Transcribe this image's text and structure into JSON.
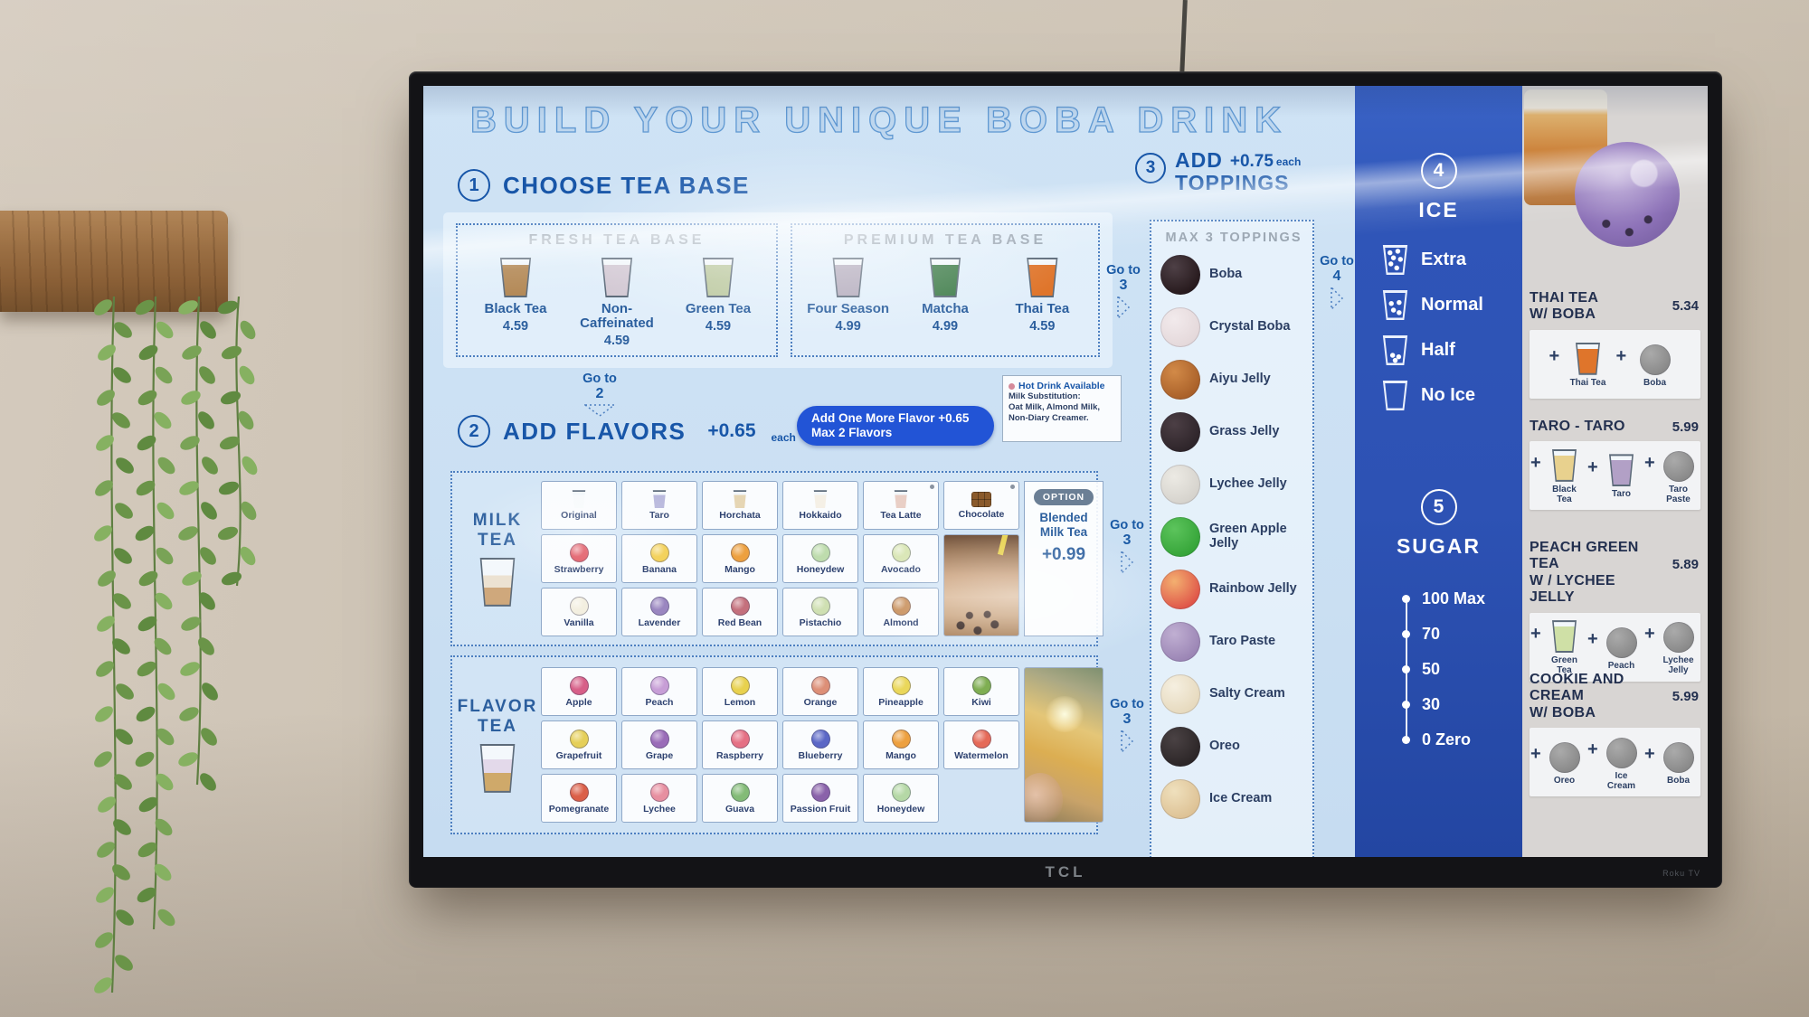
{
  "tv": {
    "brand": "TCL",
    "platform": "Roku TV"
  },
  "menu": {
    "title": "BUILD YOUR UNIQUE BOBA DRINK",
    "step1": {
      "num": "1",
      "title": "CHOOSE TEA BASE",
      "fresh": {
        "heading": "FRESH TEA BASE",
        "items": [
          {
            "label": "Black Tea",
            "price": "4.59",
            "color": "#b48a58"
          },
          {
            "label": "Non-Caffeinated",
            "price": "4.59",
            "color": "#d3c9d4"
          },
          {
            "label": "Green Tea",
            "price": "4.59",
            "color": "#bcc9a0"
          }
        ]
      },
      "premium": {
        "heading": "PREMIUM TEA BASE",
        "items": [
          {
            "label": "Four Season",
            "price": "4.99",
            "color": "#b3abbc"
          },
          {
            "label": "Matcha",
            "price": "4.99",
            "color": "#3e7c49"
          },
          {
            "label": "Thai Tea",
            "price": "4.59",
            "color": "#df752b"
          }
        ]
      },
      "goto": {
        "t": "Go to",
        "n": "2"
      },
      "goto_toppings": {
        "t": "Go to",
        "n": "3"
      }
    },
    "step2": {
      "num": "2",
      "title": "ADD FLAVORS",
      "price": "+0.65",
      "per": "each",
      "promo1": "Add One More Flavor +0.65",
      "promo2": "Max 2 Flavors",
      "note_title": "Hot Drink Available",
      "note1": "Milk Substitution:",
      "note2": "Oat Milk, Almond Milk,",
      "note3": "Non-Diary Creamer.",
      "milk": {
        "t1": "MILK",
        "t2": "TEA",
        "items": [
          {
            "label": "Original",
            "icon": "cup",
            "color": "#f7fafc"
          },
          {
            "label": "Taro",
            "icon": "cup",
            "color": "#b9b9dd"
          },
          {
            "label": "Horchata",
            "icon": "cup",
            "color": "#e6d6b4"
          },
          {
            "label": "Hokkaido",
            "icon": "cup",
            "color": "#f5f0e6"
          },
          {
            "label": "Tea Latte",
            "icon": "cup",
            "color": "#e9cfc6",
            "mark": "dot"
          },
          {
            "label": "Chocolate",
            "icon": "choco",
            "color": "#8a5a2b",
            "mark": "dot"
          },
          {
            "label": "Strawberry",
            "icon": "circle",
            "color": "#e0525e"
          },
          {
            "label": "Banana",
            "icon": "circle",
            "color": "#f3d055"
          },
          {
            "label": "Mango",
            "icon": "circle",
            "color": "#eda03f"
          },
          {
            "label": "Honeydew",
            "icon": "circle",
            "color": "#bedcad"
          },
          {
            "label": "Avocado",
            "icon": "circle",
            "color": "#d9e6b5"
          },
          {
            "label": "Vanilla",
            "icon": "circle",
            "color": "#f3efe0"
          },
          {
            "label": "Lavender",
            "icon": "circle",
            "color": "#9a86c0"
          },
          {
            "label": "Red Bean",
            "icon": "circle",
            "color": "#c4707c"
          },
          {
            "label": "Pistachio",
            "icon": "circle",
            "color": "#cfe0b2"
          },
          {
            "label": "Almond",
            "icon": "circle",
            "color": "#c8905c"
          }
        ],
        "opt_badge": "OPTION",
        "opt_name": "Blended Milk Tea",
        "opt_price": "+0.99",
        "goto": {
          "t": "Go to",
          "n": "3"
        }
      },
      "fruit": {
        "t1": "FLAVOR",
        "t2": "TEA",
        "items": [
          {
            "label": "Apple",
            "icon": "circle",
            "color": "#d75f88"
          },
          {
            "label": "Peach",
            "icon": "circle",
            "color": "#c79ed6"
          },
          {
            "label": "Lemon",
            "icon": "circle",
            "color": "#e8d14e"
          },
          {
            "label": "Orange",
            "icon": "circle",
            "color": "#dd8f77"
          },
          {
            "label": "Pineapple",
            "icon": "circle",
            "color": "#ead75a"
          },
          {
            "label": "Kiwi",
            "icon": "circle",
            "color": "#7fae52"
          },
          {
            "label": "Grapefruit",
            "icon": "circle",
            "color": "#e5cf58"
          },
          {
            "label": "Grape",
            "icon": "circle",
            "color": "#9a6cb8"
          },
          {
            "label": "Raspberry",
            "icon": "circle",
            "color": "#e57084"
          },
          {
            "label": "Blueberry",
            "icon": "circle",
            "color": "#5b67c6"
          },
          {
            "label": "Mango",
            "icon": "circle",
            "color": "#eda03f"
          },
          {
            "label": "Watermelon",
            "icon": "circle",
            "color": "#e56a58"
          },
          {
            "label": "Pomegranate",
            "icon": "circle",
            "color": "#db5f48"
          },
          {
            "label": "Lychee",
            "icon": "circle",
            "color": "#e78fa0"
          },
          {
            "label": "Guava",
            "icon": "circle",
            "color": "#83bb77"
          },
          {
            "label": "Passion Fruit",
            "icon": "circle",
            "color": "#8a62aa"
          },
          {
            "label": "Honeydew",
            "icon": "circle",
            "color": "#b5d8a6"
          }
        ],
        "goto": {
          "t": "Go to",
          "n": "3"
        }
      }
    },
    "step3": {
      "num": "3",
      "t1": "ADD",
      "t2": "TOPPINGS",
      "price": "+0.75",
      "per": "each",
      "max": "MAX 3 TOPPINGS",
      "goto": {
        "t": "Go to",
        "n": "4"
      },
      "items": [
        {
          "label": "Boba",
          "color": "#26191c",
          "color2": "#4e4046"
        },
        {
          "label": "Crystal Boba",
          "color": "#e4d8da",
          "color2": "#f2eaec"
        },
        {
          "label": "Aiyu Jelly",
          "color": "#a85f28",
          "color2": "#d28a48"
        },
        {
          "label": "Grass Jelly",
          "color": "#2d2429",
          "color2": "#4c3f45"
        },
        {
          "label": "Lychee Jelly",
          "color": "#d5d2cc",
          "color2": "#eceae4"
        },
        {
          "label": "Green Apple Jelly",
          "color": "#35a438",
          "color2": "#5cc45c"
        },
        {
          "label": "Rainbow Jelly",
          "color": "#df5448",
          "color2": "#f3b070"
        },
        {
          "label": "Taro Paste",
          "color": "#9a84b4",
          "color2": "#c0afd2"
        },
        {
          "label": "Salty Cream",
          "color": "#e6d9bd",
          "color2": "#f5efe0"
        },
        {
          "label": "Oreo",
          "color": "#2b2526",
          "color2": "#4a4244"
        },
        {
          "label": "Ice Cream",
          "color": "#ddc194",
          "color2": "#efe0bd"
        }
      ]
    },
    "step4": {
      "num": "4",
      "title": "ICE",
      "options": [
        {
          "label": "Extra",
          "level": "extra"
        },
        {
          "label": "Normal",
          "level": "normal"
        },
        {
          "label": "Half",
          "level": "half"
        },
        {
          "label": "No Ice",
          "level": "none"
        }
      ]
    },
    "step5": {
      "num": "5",
      "title": "SUGAR",
      "levels": [
        "100 Max",
        "70",
        "50",
        "30",
        "0 Zero"
      ]
    },
    "featured": [
      {
        "title1": "THAI TEA",
        "title2": "W/ BOBA",
        "price": "5.34",
        "components": [
          {
            "label": "Thai Tea",
            "kind": "cup",
            "color": "#df752b"
          },
          {
            "label": "Boba",
            "kind": "ball",
            "color": "#241a1e",
            "color2": "#4e4046"
          }
        ]
      },
      {
        "title1": "TARO - TARO",
        "title2": "",
        "price": "5.99",
        "components": [
          {
            "label": "Black Tea",
            "kind": "cup",
            "color": "#e8d18e"
          },
          {
            "label": "Taro",
            "kind": "cup",
            "color": "#c6c6e2"
          },
          {
            "label": "Taro Paste",
            "kind": "ball",
            "color": "#a globe",
            "color2": "#cabfd8"
          }
        ]
      },
      {
        "title1": "PEACH GREEN TEA",
        "title2": "W / LYCHEE JELLY",
        "price": "5.89",
        "components": [
          {
            "label": "Green Tea",
            "kind": "cup",
            "color": "#cfe0a6"
          },
          {
            "label": "Peach",
            "kind": "ball",
            "color": "#c892ce",
            "color2": "#e3b9e6"
          },
          {
            "label": "Lychee Jelly",
            "kind": "ball",
            "color": "#deDBd4",
            "color2": "#f2efe9"
          }
        ]
      },
      {
        "title1": "COOKIE AND CREAM",
        "title2": "W/ BOBA",
        "price": "5.99",
        "components": [
          {
            "label": "Oreo",
            "kind": "ball",
            "color": "#2b2526",
            "color2": "#4a4244"
          },
          {
            "label": "Ice Cream",
            "kind": "ball",
            "color": "#e0c89c",
            "color2": "#f0e3c6"
          },
          {
            "label": "Boba",
            "kind": "ball",
            "color": "#241a1e",
            "color2": "#4e4046"
          }
        ]
      }
    ]
  }
}
